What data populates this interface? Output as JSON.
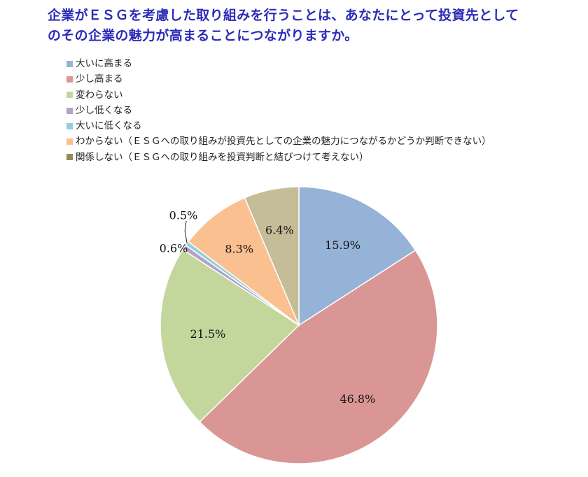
{
  "title_lines": [
    "企業がＥＳＧを考慮した取り組みを行うことは、あなたにとって投資先として",
    "のその企業の魅力が高まることにつながりますか。"
  ],
  "chart_data": {
    "type": "pie",
    "categories": [
      "大いに高まる",
      "少し高まる",
      "変わらない",
      "少し低くなる",
      "大いに低くなる",
      "わからない（ＥＳＧへの取り組みが投資先としての企業の魅力につながるかどうか判断できない）",
      "関係しない（ＥＳＧへの取り組みを投資判断と結びつけて考えない）"
    ],
    "values": [
      15.9,
      46.8,
      21.5,
      0.6,
      0.5,
      8.3,
      6.4
    ],
    "value_labels": [
      "15.9%",
      "46.8%",
      "21.5%",
      "0.6%",
      "0.5%",
      "8.3%",
      "6.4%"
    ],
    "colors": [
      "#95b3d7",
      "#d99694",
      "#c3d69b",
      "#b3a2c7",
      "#93cddd",
      "#fac090",
      "#c4bd97"
    ],
    "legend_colors": [
      "#95b3d7",
      "#d99694",
      "#c3d69b",
      "#b3a2c7",
      "#93cddd",
      "#fac090",
      "#948a54"
    ],
    "legend_position": "top-left"
  }
}
